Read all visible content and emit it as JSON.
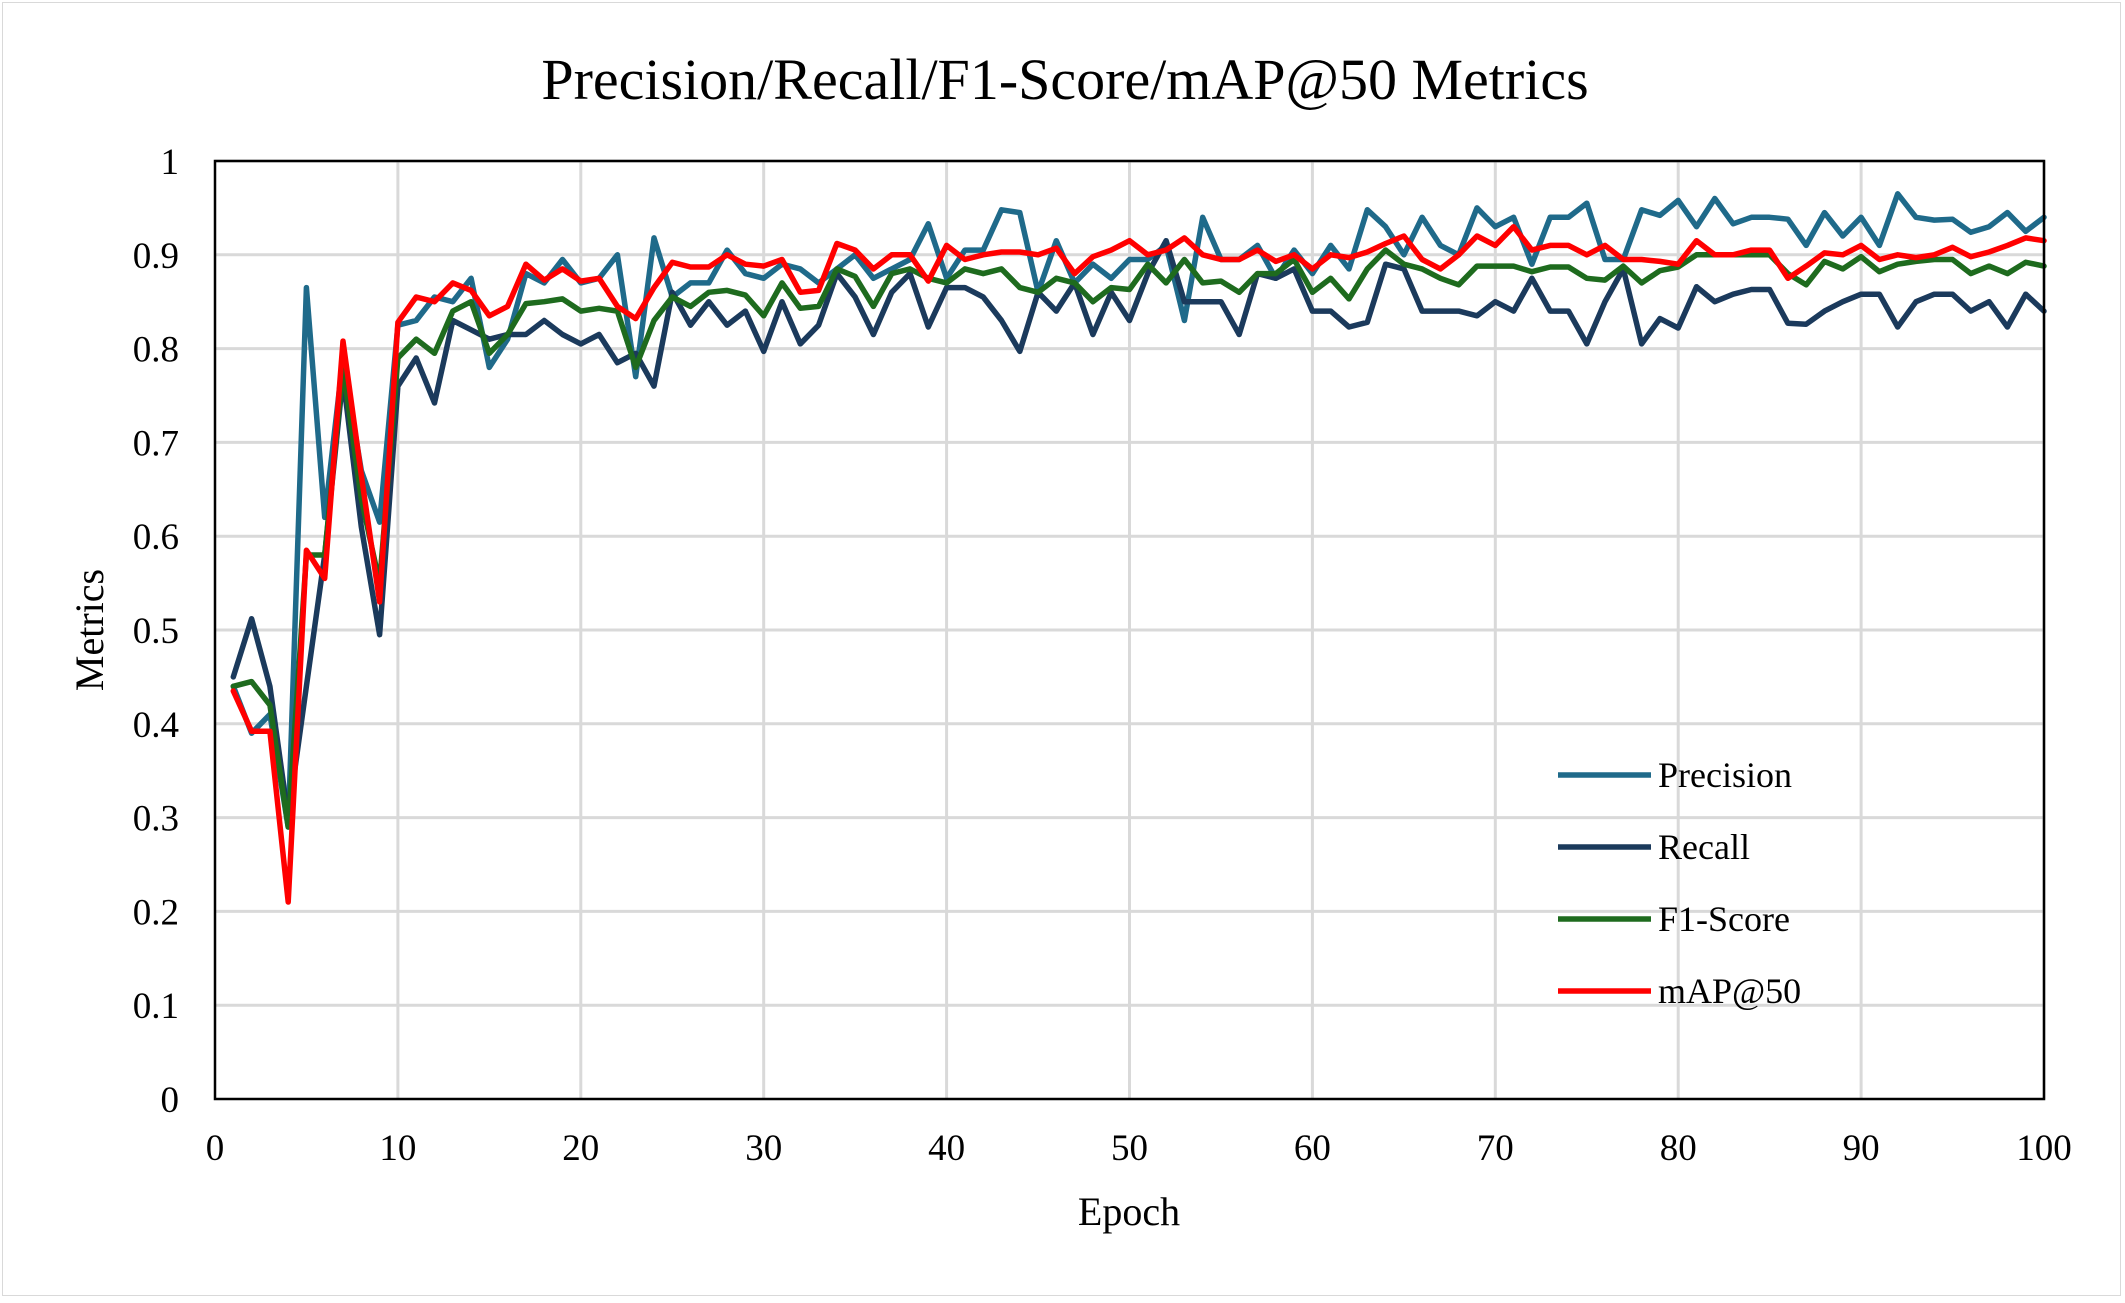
{
  "chart_data": {
    "type": "line",
    "title": "Precision/Recall/F1-Score/mAP@50 Metrics",
    "xlabel": "Epoch",
    "ylabel": "Metrics",
    "xlim": [
      0,
      100
    ],
    "ylim": [
      0,
      1
    ],
    "x_ticks": [
      "0",
      "10",
      "20",
      "30",
      "40",
      "50",
      "60",
      "70",
      "80",
      "90",
      "100"
    ],
    "y_ticks": [
      "0",
      "0.1",
      "0.2",
      "0.3",
      "0.4",
      "0.5",
      "0.6",
      "0.7",
      "0.8",
      "0.9",
      "1"
    ],
    "grid": true,
    "legend_position": "bottom-right",
    "x": [
      1,
      2,
      3,
      4,
      5,
      6,
      7,
      8,
      9,
      10,
      11,
      12,
      13,
      14,
      15,
      16,
      17,
      18,
      19,
      20,
      21,
      22,
      23,
      24,
      25,
      26,
      27,
      28,
      29,
      30,
      31,
      32,
      33,
      34,
      35,
      36,
      37,
      38,
      39,
      40,
      41,
      42,
      43,
      44,
      45,
      46,
      47,
      48,
      49,
      50,
      51,
      52,
      53,
      54,
      55,
      56,
      57,
      58,
      59,
      60,
      61,
      62,
      63,
      64,
      65,
      66,
      67,
      68,
      69,
      70,
      71,
      72,
      73,
      74,
      75,
      76,
      77,
      78,
      79,
      80,
      81,
      82,
      83,
      84,
      85,
      86,
      87,
      88,
      89,
      90,
      91,
      92,
      93,
      94,
      95,
      96,
      97,
      98,
      99,
      100
    ],
    "series": [
      {
        "name": "Precision",
        "color": "#1f6a8a",
        "values": [
          0.44,
          0.39,
          0.41,
          0.29,
          0.865,
          0.62,
          0.79,
          0.67,
          0.615,
          0.825,
          0.83,
          0.855,
          0.85,
          0.875,
          0.78,
          0.81,
          0.88,
          0.87,
          0.895,
          0.87,
          0.875,
          0.9,
          0.77,
          0.918,
          0.855,
          0.87,
          0.87,
          0.905,
          0.88,
          0.875,
          0.89,
          0.885,
          0.87,
          0.885,
          0.9,
          0.875,
          0.885,
          0.895,
          0.933,
          0.875,
          0.905,
          0.905,
          0.948,
          0.945,
          0.86,
          0.915,
          0.87,
          0.89,
          0.875,
          0.895,
          0.895,
          0.91,
          0.83,
          0.94,
          0.895,
          0.895,
          0.91,
          0.875,
          0.905,
          0.88,
          0.91,
          0.885,
          0.948,
          0.93,
          0.9,
          0.94,
          0.91,
          0.9,
          0.95,
          0.93,
          0.94,
          0.89,
          0.94,
          0.94,
          0.955,
          0.895,
          0.895,
          0.948,
          0.942,
          0.958,
          0.93,
          0.96,
          0.933,
          0.94,
          0.94,
          0.938,
          0.91,
          0.945,
          0.92,
          0.94,
          0.91,
          0.965,
          0.94,
          0.937,
          0.938,
          0.924,
          0.93,
          0.945,
          0.925,
          0.94
        ]
      },
      {
        "name": "Recall",
        "color": "#1b3a5c",
        "values": [
          0.45,
          0.512,
          0.44,
          0.3,
          0.44,
          0.58,
          0.77,
          0.61,
          0.495,
          0.76,
          0.79,
          0.742,
          0.83,
          0.82,
          0.81,
          0.815,
          0.815,
          0.83,
          0.815,
          0.805,
          0.815,
          0.785,
          0.795,
          0.76,
          0.86,
          0.825,
          0.85,
          0.825,
          0.84,
          0.797,
          0.85,
          0.805,
          0.825,
          0.88,
          0.855,
          0.815,
          0.86,
          0.88,
          0.823,
          0.865,
          0.865,
          0.855,
          0.83,
          0.797,
          0.86,
          0.84,
          0.87,
          0.815,
          0.86,
          0.83,
          0.88,
          0.915,
          0.85,
          0.85,
          0.85,
          0.815,
          0.88,
          0.875,
          0.885,
          0.84,
          0.84,
          0.823,
          0.828,
          0.89,
          0.885,
          0.84,
          0.84,
          0.84,
          0.835,
          0.85,
          0.84,
          0.875,
          0.84,
          0.84,
          0.805,
          0.85,
          0.885,
          0.805,
          0.832,
          0.822,
          0.866,
          0.85,
          0.858,
          0.863,
          0.863,
          0.827,
          0.826,
          0.84,
          0.85,
          0.858,
          0.858,
          0.823,
          0.85,
          0.858,
          0.858,
          0.84,
          0.85,
          0.823,
          0.858,
          0.84
        ]
      },
      {
        "name": "F1-Score",
        "color": "#1e6b1e",
        "values": [
          0.44,
          0.445,
          0.42,
          0.29,
          0.58,
          0.58,
          0.78,
          0.64,
          0.55,
          0.79,
          0.81,
          0.795,
          0.84,
          0.85,
          0.795,
          0.815,
          0.848,
          0.85,
          0.853,
          0.84,
          0.843,
          0.84,
          0.78,
          0.83,
          0.855,
          0.845,
          0.86,
          0.862,
          0.857,
          0.835,
          0.87,
          0.843,
          0.845,
          0.885,
          0.877,
          0.845,
          0.88,
          0.885,
          0.875,
          0.87,
          0.885,
          0.88,
          0.885,
          0.865,
          0.86,
          0.875,
          0.87,
          0.85,
          0.865,
          0.863,
          0.89,
          0.87,
          0.895,
          0.87,
          0.872,
          0.86,
          0.88,
          0.88,
          0.895,
          0.86,
          0.875,
          0.853,
          0.885,
          0.905,
          0.89,
          0.885,
          0.875,
          0.868,
          0.888,
          0.888,
          0.888,
          0.882,
          0.887,
          0.887,
          0.875,
          0.873,
          0.888,
          0.87,
          0.883,
          0.887,
          0.9,
          0.9,
          0.9,
          0.9,
          0.9,
          0.88,
          0.868,
          0.893,
          0.885,
          0.898,
          0.882,
          0.89,
          0.893,
          0.895,
          0.895,
          0.88,
          0.888,
          0.88,
          0.892,
          0.888
        ]
      },
      {
        "name": "mAP@50",
        "color": "#ff0000",
        "values": [
          0.435,
          0.392,
          0.392,
          0.21,
          0.585,
          0.555,
          0.808,
          0.665,
          0.53,
          0.828,
          0.855,
          0.85,
          0.87,
          0.862,
          0.835,
          0.845,
          0.89,
          0.873,
          0.885,
          0.872,
          0.875,
          0.845,
          0.832,
          0.865,
          0.892,
          0.887,
          0.887,
          0.9,
          0.89,
          0.888,
          0.895,
          0.86,
          0.862,
          0.912,
          0.905,
          0.885,
          0.9,
          0.9,
          0.872,
          0.91,
          0.895,
          0.9,
          0.903,
          0.903,
          0.9,
          0.907,
          0.88,
          0.898,
          0.905,
          0.915,
          0.9,
          0.905,
          0.918,
          0.9,
          0.895,
          0.895,
          0.905,
          0.893,
          0.9,
          0.885,
          0.9,
          0.897,
          0.903,
          0.912,
          0.92,
          0.895,
          0.885,
          0.9,
          0.92,
          0.91,
          0.93,
          0.905,
          0.91,
          0.91,
          0.9,
          0.91,
          0.895,
          0.895,
          0.893,
          0.89,
          0.915,
          0.9,
          0.9,
          0.905,
          0.905,
          0.875,
          0.888,
          0.902,
          0.9,
          0.91,
          0.895,
          0.9,
          0.897,
          0.9,
          0.908,
          0.898,
          0.903,
          0.91,
          0.918,
          0.915
        ]
      }
    ]
  }
}
